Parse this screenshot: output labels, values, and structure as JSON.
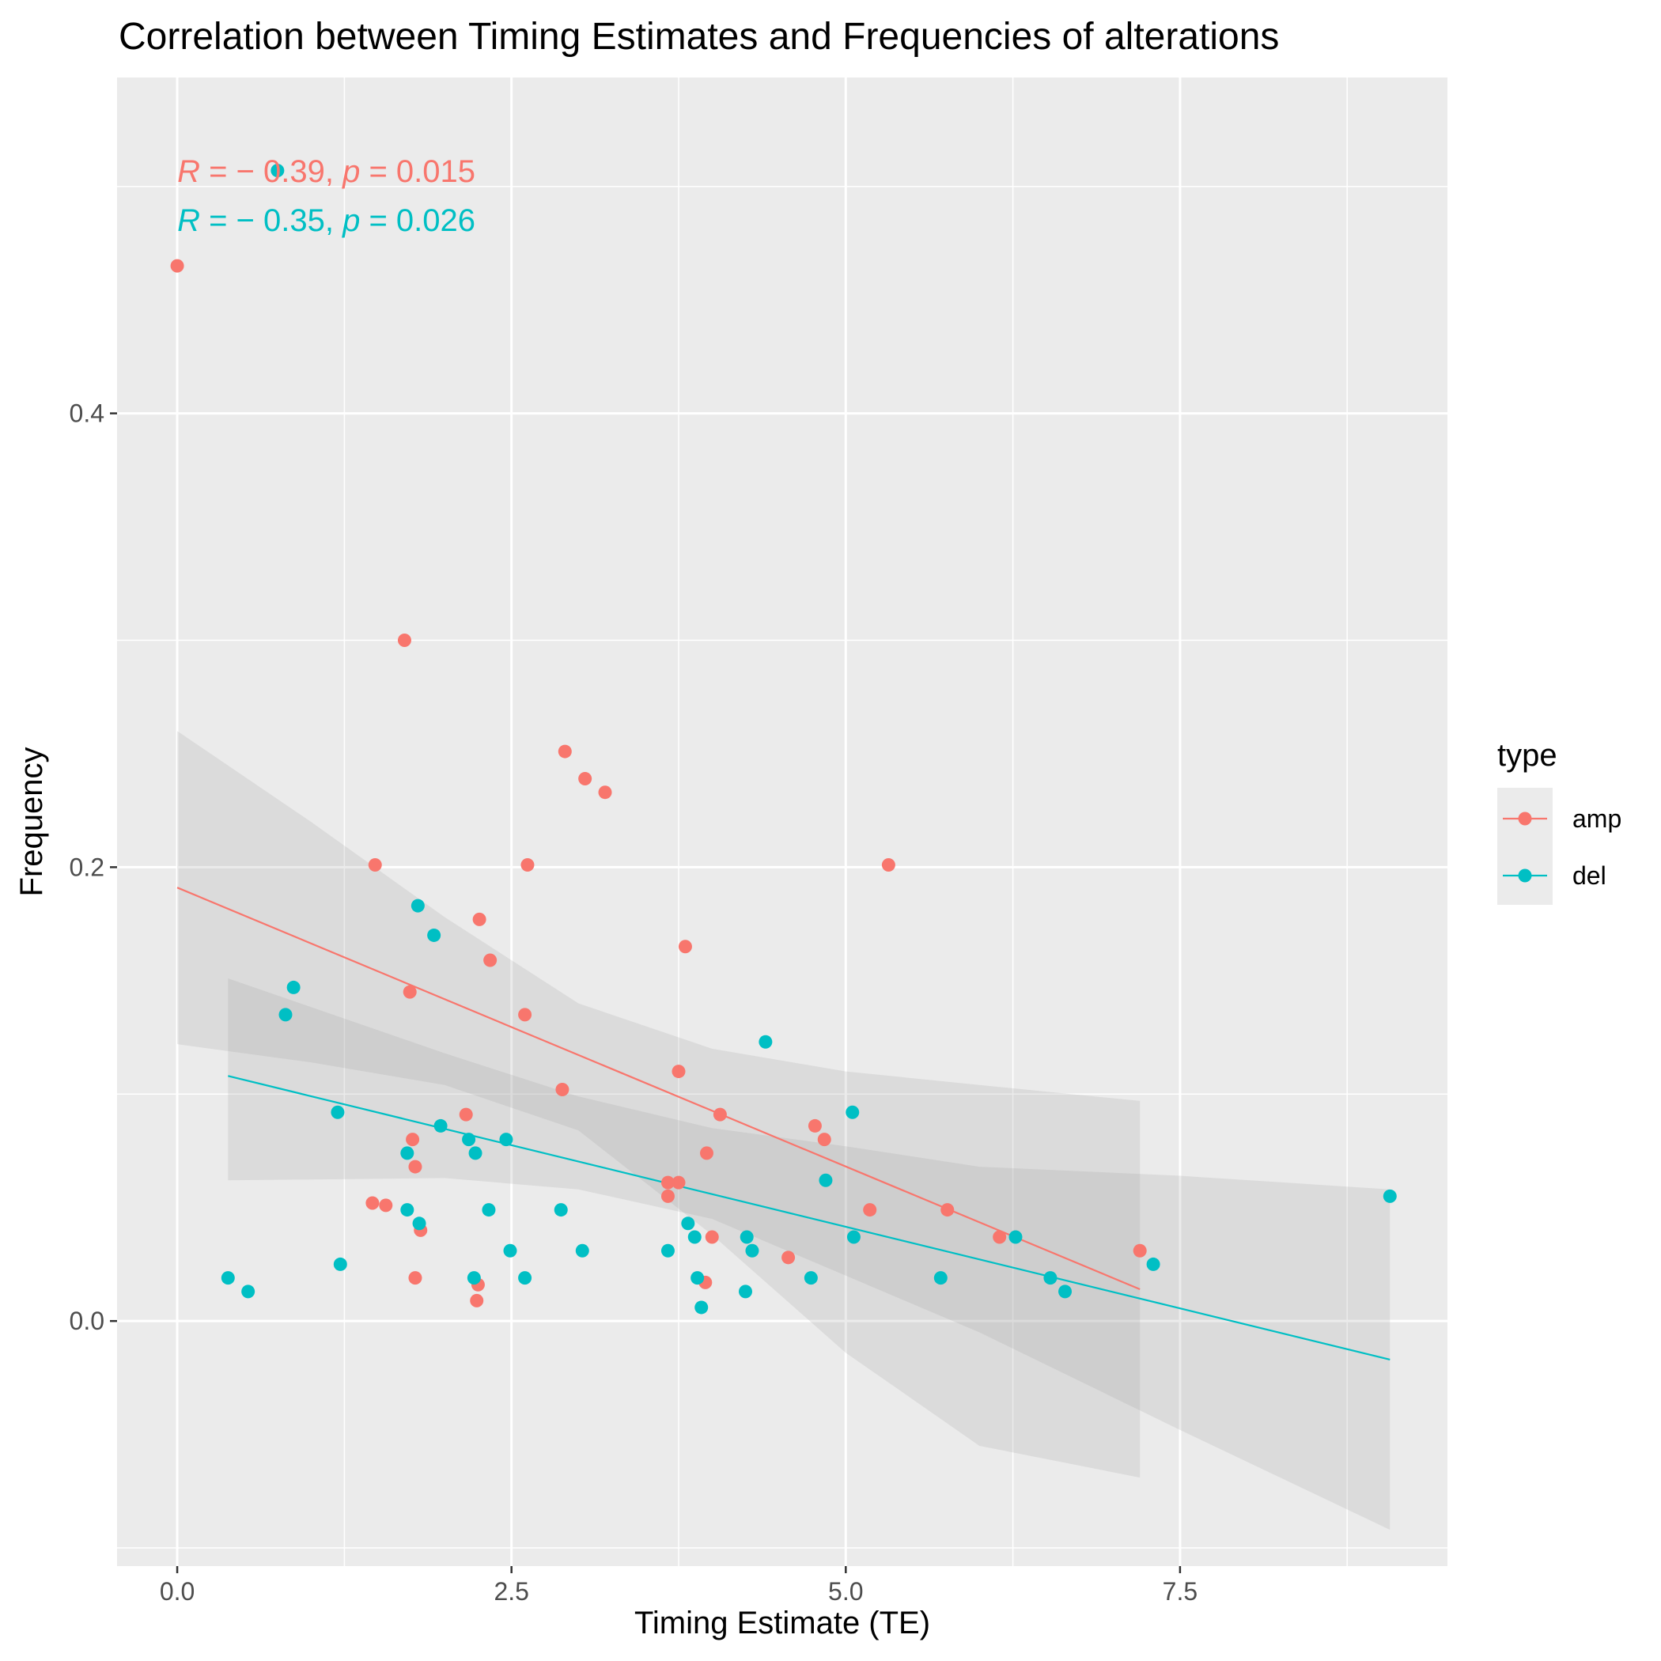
{
  "chart_data": {
    "type": "scatter",
    "title": "Correlation between Timing Estimates and Frequencies of alterations",
    "xlabel": "Timing Estimate (TE)",
    "ylabel": "Frequency",
    "xlim": [
      -0.45,
      9.5
    ],
    "ylim": [
      -0.108,
      0.548
    ],
    "x_ticks": [
      0,
      2.5,
      5,
      7.5
    ],
    "x_tick_labels": [
      "0.0",
      "2.5",
      "5.0",
      "7.5"
    ],
    "y_ticks": [
      0,
      0.2,
      0.4
    ],
    "y_tick_labels": [
      "0.0",
      "0.2",
      "0.4"
    ],
    "grid": true,
    "legend": {
      "title": "type",
      "position": "right"
    },
    "annotations": [
      {
        "series": "amp",
        "text_r": "R",
        "text_eq1": " = − 0.39, ",
        "text_p": "p",
        "text_eq2": " = 0.015"
      },
      {
        "series": "del",
        "text_r": "R",
        "text_eq1": " = − 0.35, ",
        "text_p": "p",
        "text_eq2": " = 0.026"
      }
    ],
    "series": [
      {
        "name": "amp",
        "color": "#F8766D",
        "points": [
          [
            0.0,
            0.465
          ],
          [
            1.7,
            0.3
          ],
          [
            1.48,
            0.201
          ],
          [
            2.9,
            0.251
          ],
          [
            3.05,
            0.239
          ],
          [
            3.2,
            0.233
          ],
          [
            2.62,
            0.201
          ],
          [
            5.32,
            0.201
          ],
          [
            2.26,
            0.177
          ],
          [
            3.8,
            0.165
          ],
          [
            2.34,
            0.159
          ],
          [
            1.74,
            0.145
          ],
          [
            2.6,
            0.135
          ],
          [
            3.75,
            0.11
          ],
          [
            2.88,
            0.102
          ],
          [
            4.06,
            0.091
          ],
          [
            2.16,
            0.091
          ],
          [
            4.77,
            0.086
          ],
          [
            4.84,
            0.08
          ],
          [
            1.76,
            0.08
          ],
          [
            3.96,
            0.074
          ],
          [
            1.78,
            0.068
          ],
          [
            3.75,
            0.061
          ],
          [
            3.67,
            0.061
          ],
          [
            3.67,
            0.055
          ],
          [
            1.46,
            0.052
          ],
          [
            1.56,
            0.051
          ],
          [
            5.18,
            0.049
          ],
          [
            5.76,
            0.049
          ],
          [
            1.82,
            0.04
          ],
          [
            4.0,
            0.037
          ],
          [
            6.15,
            0.037
          ],
          [
            7.2,
            0.031
          ],
          [
            4.57,
            0.028
          ],
          [
            1.78,
            0.019
          ],
          [
            3.95,
            0.017
          ],
          [
            2.25,
            0.016
          ],
          [
            2.24,
            0.009
          ]
        ],
        "fit": {
          "x": [
            0.0,
            7.2
          ],
          "y": [
            0.191,
            0.014
          ]
        },
        "band": {
          "x": [
            0.0,
            1.0,
            2.0,
            3.0,
            4.0,
            5.0,
            6.0,
            7.2
          ],
          "lower": [
            0.122,
            0.114,
            0.104,
            0.084,
            0.038,
            -0.014,
            -0.055,
            -0.069
          ],
          "upper": [
            0.26,
            0.22,
            0.178,
            0.14,
            0.12,
            0.11,
            0.104,
            0.097
          ]
        }
      },
      {
        "name": "del",
        "color": "#00BFC4",
        "points": [
          [
            0.75,
            0.507
          ],
          [
            1.8,
            0.183
          ],
          [
            1.92,
            0.17
          ],
          [
            0.87,
            0.147
          ],
          [
            0.81,
            0.135
          ],
          [
            4.4,
            0.123
          ],
          [
            1.2,
            0.092
          ],
          [
            5.05,
            0.092
          ],
          [
            1.97,
            0.086
          ],
          [
            2.18,
            0.08
          ],
          [
            2.46,
            0.08
          ],
          [
            1.72,
            0.074
          ],
          [
            2.23,
            0.074
          ],
          [
            4.85,
            0.062
          ],
          [
            9.07,
            0.055
          ],
          [
            1.72,
            0.049
          ],
          [
            2.33,
            0.049
          ],
          [
            2.87,
            0.049
          ],
          [
            1.81,
            0.043
          ],
          [
            3.82,
            0.043
          ],
          [
            3.87,
            0.037
          ],
          [
            5.06,
            0.037
          ],
          [
            6.27,
            0.037
          ],
          [
            2.49,
            0.031
          ],
          [
            3.03,
            0.031
          ],
          [
            3.67,
            0.031
          ],
          [
            4.3,
            0.031
          ],
          [
            4.26,
            0.037
          ],
          [
            1.22,
            0.025
          ],
          [
            7.3,
            0.025
          ],
          [
            0.38,
            0.019
          ],
          [
            2.22,
            0.019
          ],
          [
            2.6,
            0.019
          ],
          [
            3.89,
            0.019
          ],
          [
            4.74,
            0.019
          ],
          [
            5.71,
            0.019
          ],
          [
            6.53,
            0.019
          ],
          [
            0.53,
            0.013
          ],
          [
            4.25,
            0.013
          ],
          [
            6.64,
            0.013
          ],
          [
            3.92,
            0.006
          ]
        ],
        "fit": {
          "x": [
            0.38,
            9.07
          ],
          "y": [
            0.108,
            -0.017
          ]
        },
        "band": {
          "x": [
            0.38,
            2.0,
            3.0,
            4.0,
            5.0,
            6.0,
            7.5,
            9.07
          ],
          "lower": [
            0.062,
            0.063,
            0.058,
            0.045,
            0.02,
            -0.005,
            -0.048,
            -0.092
          ],
          "upper": [
            0.151,
            0.118,
            0.099,
            0.085,
            0.077,
            0.068,
            0.064,
            0.058
          ]
        }
      }
    ]
  }
}
